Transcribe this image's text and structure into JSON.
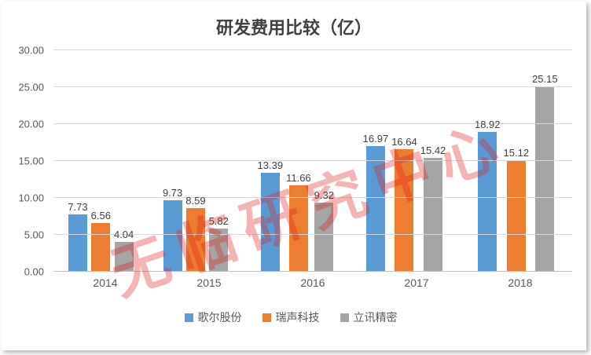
{
  "chart_data": {
    "type": "bar",
    "title": "研发费用比较（亿）",
    "categories": [
      "2014",
      "2015",
      "2016",
      "2017",
      "2018"
    ],
    "series": [
      {
        "name": "歌尔股份",
        "color": "#5B9BD5",
        "values": [
          7.73,
          9.73,
          13.39,
          16.97,
          18.92
        ]
      },
      {
        "name": "瑞声科技",
        "color": "#ED7D31",
        "values": [
          6.56,
          8.59,
          11.66,
          16.64,
          15.12
        ]
      },
      {
        "name": "立讯精密",
        "color": "#A5A5A5",
        "values": [
          4.04,
          5.82,
          9.32,
          15.42,
          25.15
        ]
      }
    ],
    "ylim": [
      0,
      30
    ],
    "ytick_step": 5,
    "yticks": [
      "0.00",
      "5.00",
      "10.00",
      "15.00",
      "20.00",
      "25.00",
      "30.00"
    ],
    "grid": true,
    "legend_position": "bottom"
  },
  "watermark": {
    "text": "无临研究中心",
    "color": "#DE1C1C"
  }
}
